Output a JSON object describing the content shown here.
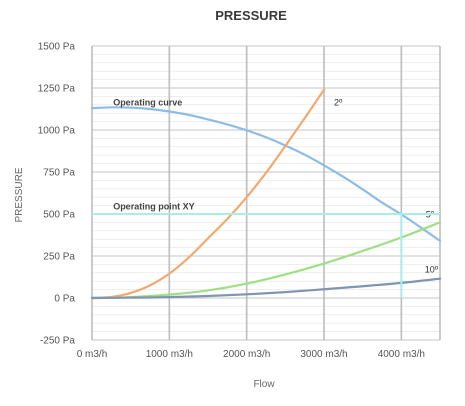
{
  "chart_data": {
    "type": "line",
    "title": "PRESSURE",
    "xlabel": "Flow",
    "ylabel": "PRESSURE",
    "xlim": [
      0,
      4500
    ],
    "ylim": [
      -250,
      1500
    ],
    "x_ticks": [
      {
        "value": 0,
        "label": "0 m3/h"
      },
      {
        "value": 1000,
        "label": "1000 m3/h"
      },
      {
        "value": 2000,
        "label": "2000 m3/h"
      },
      {
        "value": 3000,
        "label": "3000 m3/h"
      },
      {
        "value": 4000,
        "label": "4000 m3/h"
      }
    ],
    "y_ticks": [
      {
        "value": -250,
        "label": "-250 Pa"
      },
      {
        "value": 0,
        "label": "0 Pa"
      },
      {
        "value": 250,
        "label": "250 Pa"
      },
      {
        "value": 500,
        "label": "500 Pa"
      },
      {
        "value": 750,
        "label": "750 Pa"
      },
      {
        "value": 1000,
        "label": "1000 Pa"
      },
      {
        "value": 1250,
        "label": "1250 Pa"
      },
      {
        "value": 1500,
        "label": "1500 Pa"
      }
    ],
    "grid": true,
    "series": [
      {
        "key": "operating",
        "color": "#8dbde6",
        "x": [
          0,
          250,
          500,
          750,
          1000,
          1250,
          1500,
          1750,
          2000,
          2250,
          2500,
          2750,
          3000,
          3250,
          3500,
          3750,
          4000,
          4250,
          4500
        ],
        "y": [
          1130,
          1135,
          1133,
          1125,
          1110,
          1090,
          1063,
          1033,
          998,
          957,
          908,
          853,
          790,
          721,
          647,
          568,
          498,
          420,
          340
        ]
      },
      {
        "key": "two_deg",
        "name": "2º",
        "color": "#f2a970",
        "x": [
          0,
          250,
          500,
          750,
          1000,
          1250,
          1500,
          1750,
          2000,
          2250,
          2500,
          2750,
          3000
        ],
        "y": [
          0,
          6,
          30,
          75,
          145,
          240,
          355,
          470,
          600,
          745,
          905,
          1070,
          1240
        ]
      },
      {
        "key": "five_deg",
        "name": "5º",
        "color": "#9edf84",
        "x": [
          0,
          500,
          1000,
          1500,
          2000,
          2500,
          3000,
          3500,
          4000,
          4500
        ],
        "y": [
          0,
          5,
          20,
          45,
          85,
          140,
          205,
          280,
          360,
          450
        ]
      },
      {
        "key": "ten_deg",
        "name": "10º",
        "color": "#7f95b2",
        "x": [
          0,
          500,
          1000,
          1500,
          2000,
          2500,
          3000,
          3500,
          4000,
          4500
        ],
        "y": [
          0,
          2,
          5,
          12,
          22,
          35,
          52,
          70,
          90,
          115
        ]
      }
    ],
    "annotations": [
      {
        "text": "Operating curve",
        "x": 300,
        "y": 1165
      },
      {
        "text": "Operating point XY",
        "x": 300,
        "y": 545
      }
    ],
    "operating_point": {
      "x": 4000,
      "y": 500,
      "color": "#a8ecec"
    }
  }
}
